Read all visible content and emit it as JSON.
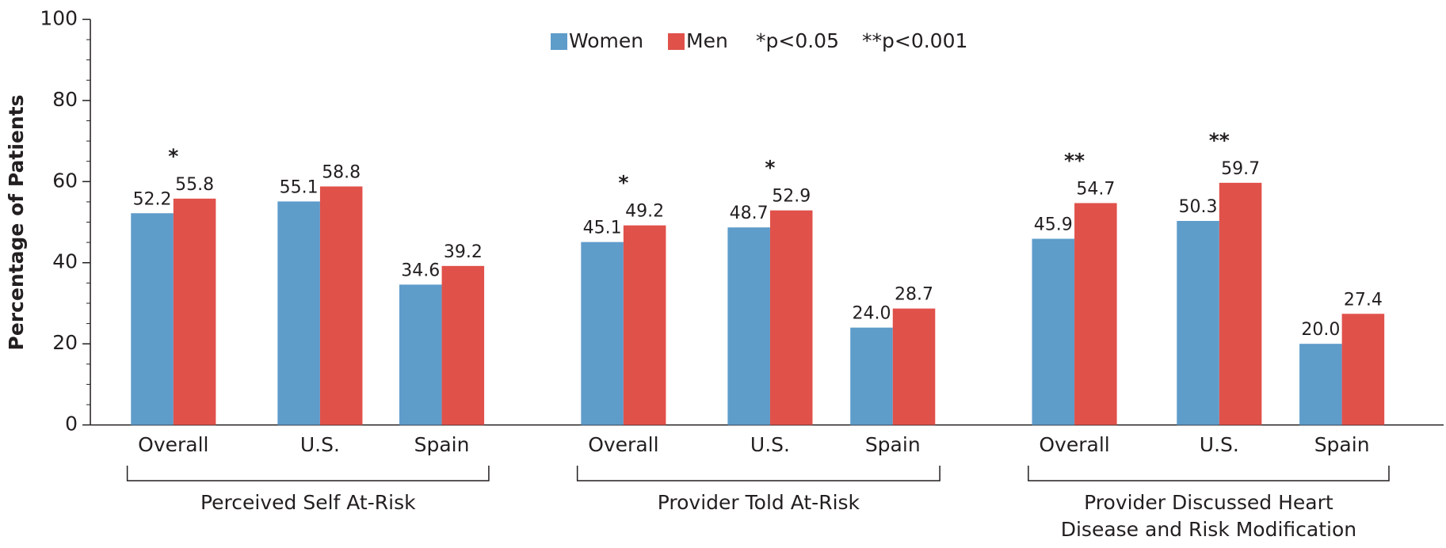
{
  "chart_data": {
    "type": "bar",
    "y_label": "Percentage of Patients",
    "categories": [
      "Overall",
      "U.S.",
      "Spain",
      "Overall",
      "U.S.",
      "Spain",
      "Overall",
      "U.S.",
      "Spain"
    ],
    "groups": [
      [
        "Perceived Self At-Risk"
      ],
      [
        "Provider Told At-Risk"
      ],
      [
        "Provider Discussed Heart",
        "Disease and Risk Modification"
      ]
    ],
    "series": [
      {
        "name": "Women",
        "color": "#5e9cca",
        "values": [
          52.2,
          55.1,
          34.6,
          45.1,
          48.7,
          24.0,
          45.9,
          50.3,
          20.0
        ],
        "value_labels": [
          "52.2",
          "55.1",
          "34.6",
          "45.1",
          "48.7",
          "24.0",
          "45.9",
          "50.3",
          "20.0"
        ]
      },
      {
        "name": "Men",
        "color": "#e0514a",
        "values": [
          55.8,
          58.8,
          39.2,
          49.2,
          52.9,
          28.7,
          54.7,
          59.7,
          27.4
        ],
        "value_labels": [
          "55.8",
          "58.8",
          "39.2",
          "49.2",
          "52.9",
          "28.7",
          "54.7",
          "59.7",
          "27.4"
        ]
      }
    ],
    "significance": [
      "*",
      null,
      null,
      "*",
      "*",
      null,
      "**",
      "**",
      null
    ],
    "legend_notes": [
      "*p<0.05",
      "**p<0.001"
    ],
    "ylim": [
      0,
      100
    ],
    "yticks": [
      0,
      20,
      40,
      60,
      80,
      100
    ],
    "yminorticks": [
      5,
      10,
      15,
      25,
      30,
      35,
      45,
      50,
      55,
      65,
      70,
      75,
      85,
      90,
      95
    ]
  }
}
